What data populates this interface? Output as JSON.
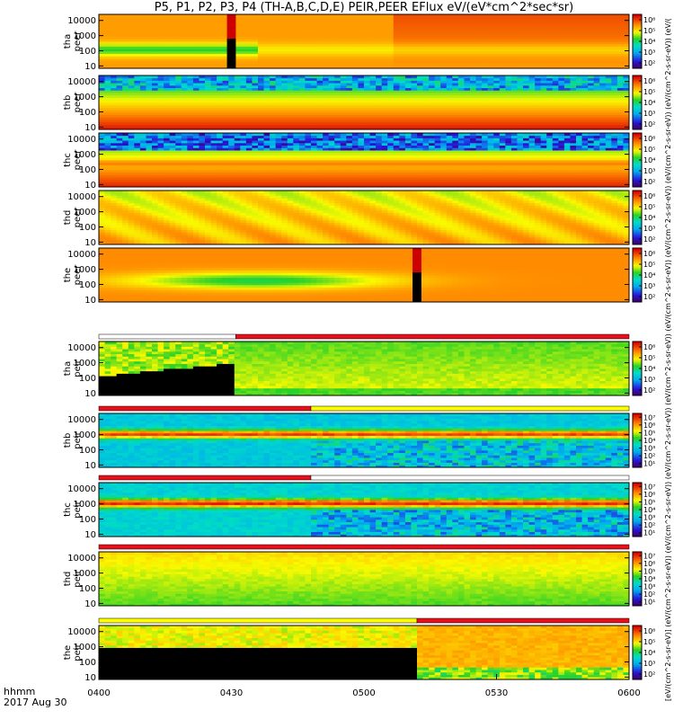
{
  "title": "P5, P1, P2, P3, P4 (TH-A,B,C,D,E) PEIR,PEER EFlux eV/(eV*cm^2*sec*sr)",
  "time_format_label": "hhmm",
  "date_label": "2017 Aug 30",
  "units_label": "[eV/(cm^2-s-sr-eV)] (eV/(cm^2-s-sr-eV)) (eV/(cm^2-s-sr-eV)) (eV/(cm^2-s-sr-eV)) (eV/(cm^2-s-sr-eV)) (eV/(cm^2-s-sr-eV)) (eV/(cm^2-s-sr-eV)) (eV/(cm^2-s-sr-eV)) (eV/(cm^2-s-sr-eV)) (eV/(cm^2-s-sr-eV))",
  "colors": {
    "flag_red": "#e8101a",
    "flag_yellow": "#ffff00",
    "flag_white": "#ffffff"
  },
  "chart_data": {
    "type": "heatmap",
    "x_ticks": [
      "0400",
      "0430",
      "0500",
      "0530",
      "0600"
    ],
    "x_range": [
      "04:00",
      "06:00"
    ],
    "y_scale": "log",
    "y_range_eV": [
      7,
      25000
    ],
    "y_ticks": [
      "10",
      "100",
      "1000",
      "10000"
    ],
    "colorscale": "rainbow (purple-blue-cyan-green-yellow-red)",
    "panels": [
      {
        "probe": "tha",
        "species": "peer",
        "label": [
          "tha",
          "peer"
        ],
        "cbar_min": 100,
        "cbar_max": 1000000,
        "cbar_ticks": [
          "10²",
          "10³",
          "10⁴",
          "10⁵",
          "10⁶"
        ],
        "gap_start": "04:29",
        "gap_end": "04:31"
      },
      {
        "probe": "thb",
        "species": "peer",
        "label": [
          "thb",
          "peer"
        ],
        "cbar_min": 100,
        "cbar_max": 1000000,
        "cbar_ticks": [
          "10²",
          "10³",
          "10⁴",
          "10⁵",
          "10⁶"
        ]
      },
      {
        "probe": "thc",
        "species": "peer",
        "label": [
          "thc",
          "peer"
        ],
        "cbar_min": 100,
        "cbar_max": 1000000,
        "cbar_ticks": [
          "10²",
          "10³",
          "10⁴",
          "10⁵",
          "10⁶"
        ]
      },
      {
        "probe": "thd",
        "species": "peer",
        "label": [
          "thd",
          "peer"
        ],
        "cbar_min": 100,
        "cbar_max": 1000000,
        "cbar_ticks": [
          "10²",
          "10³",
          "10⁴",
          "10⁵",
          "10⁶"
        ]
      },
      {
        "probe": "the",
        "species": "peer",
        "label": [
          "the",
          "peer"
        ],
        "cbar_min": 100,
        "cbar_max": 1000000,
        "cbar_ticks": [
          "10²",
          "10³",
          "10⁴",
          "10⁵",
          "10⁶"
        ],
        "gap_start": "05:11",
        "gap_end": "05:13"
      },
      {
        "probe": "tha",
        "species": "peir",
        "label": [
          "tha",
          "peir"
        ],
        "cbar_min": 100,
        "cbar_max": 1000000,
        "cbar_ticks": [
          "10²",
          "10³",
          "10⁴",
          "10⁵",
          "10⁶"
        ],
        "mode_change": "04:31",
        "flag_bar": [
          {
            "from": "04:00",
            "to": "04:31",
            "color": "white"
          },
          {
            "from": "04:31",
            "to": "06:00",
            "color": "red"
          }
        ]
      },
      {
        "probe": "thb",
        "species": "peir",
        "label": [
          "thb",
          "peir"
        ],
        "cbar_min": 10,
        "cbar_max": 10000000,
        "cbar_ticks": [
          "10¹",
          "10²",
          "10³",
          "10⁴",
          "10⁵",
          "10⁶",
          "10⁷"
        ],
        "mode_change": "04:48",
        "flag_bar": [
          {
            "from": "04:00",
            "to": "04:48",
            "color": "red"
          },
          {
            "from": "04:48",
            "to": "06:00",
            "color": "yellow"
          }
        ]
      },
      {
        "probe": "thc",
        "species": "peir",
        "label": [
          "thc",
          "peir"
        ],
        "cbar_min": 10,
        "cbar_max": 10000000,
        "cbar_ticks": [
          "10¹",
          "10²",
          "10³",
          "10⁴",
          "10⁵",
          "10⁶",
          "10⁷"
        ],
        "mode_change": "04:48",
        "flag_bar": [
          {
            "from": "04:00",
            "to": "04:48",
            "color": "red"
          },
          {
            "from": "04:48",
            "to": "06:00",
            "color": "white"
          }
        ]
      },
      {
        "probe": "thd",
        "species": "peir",
        "label": [
          "thd",
          "peir"
        ],
        "cbar_min": 10,
        "cbar_max": 10000000,
        "cbar_ticks": [
          "10¹",
          "10²",
          "10³",
          "10⁴",
          "10⁵",
          "10⁶",
          "10⁷"
        ],
        "flag_bar": [
          {
            "from": "04:00",
            "to": "06:00",
            "color": "red"
          }
        ]
      },
      {
        "probe": "the",
        "species": "peir",
        "label": [
          "the",
          "peir"
        ],
        "cbar_min": 100,
        "cbar_max": 1000000,
        "cbar_ticks": [
          "10²",
          "10³",
          "10⁴",
          "10⁵",
          "10⁶"
        ],
        "mode_change": "05:12",
        "flag_bar": [
          {
            "from": "04:00",
            "to": "05:12",
            "color": "yellow"
          },
          {
            "from": "05:12",
            "to": "06:00",
            "color": "red"
          }
        ]
      }
    ]
  }
}
